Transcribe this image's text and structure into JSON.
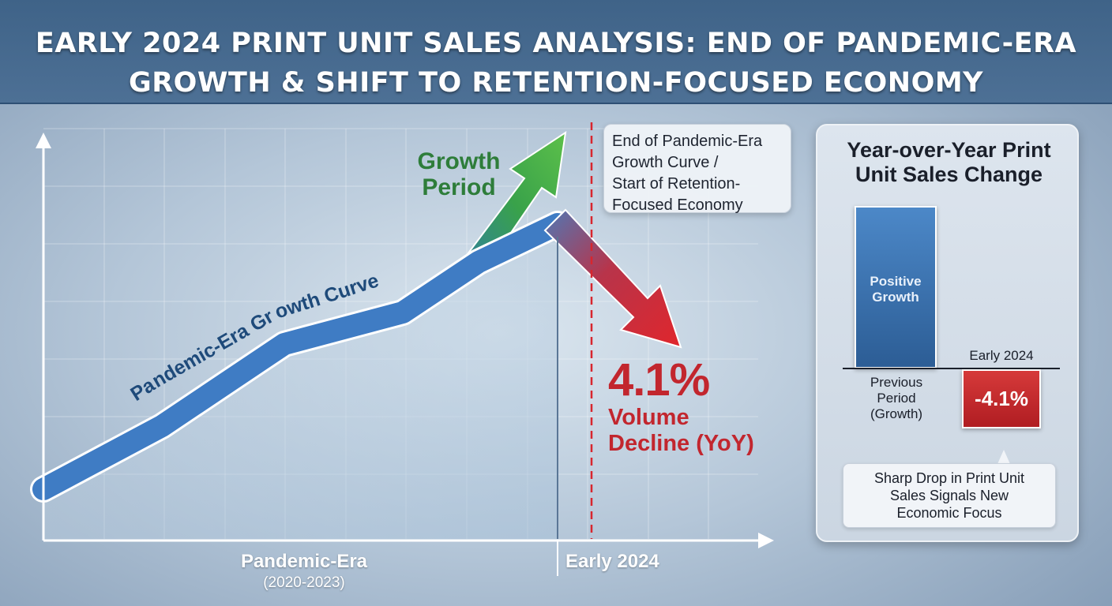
{
  "title": {
    "line1": "EARLY 2024 PRINT UNIT SALES ANALYSIS: END OF PANDEMIC-ERA",
    "line2": "GROWTH & SHIFT TO RETENTION-FOCUSED ECONOMY"
  },
  "colors": {
    "header": "#46698f",
    "curve": "#3f7cc4",
    "growth_arrow": "#3aa548",
    "decline_arrow": "#d8262e",
    "decline_text": "#c2262e",
    "growth_text": "#2e7d3a",
    "marker_line": "#d8262e"
  },
  "chart_data": [
    {
      "type": "line",
      "series": [
        {
          "name": "Pandemic-Era Growth Curve",
          "points": [
            {
              "x": "Pandemic-Era (2020-2023)",
              "y": 1.0
            },
            {
              "x": "",
              "y": 2.0
            },
            {
              "x": "",
              "y": 3.3
            },
            {
              "x": "",
              "y": 3.8
            },
            {
              "x": "",
              "y": 4.6
            },
            {
              "x": "Early 2024",
              "y": 5.2
            }
          ]
        }
      ],
      "x_labels": [
        {
          "label": "Pandemic-Era",
          "sub": "(2020-2023)"
        },
        {
          "label": "Early 2024",
          "sub": ""
        }
      ],
      "annotations": {
        "growth": {
          "line1": "Growth",
          "line2": "Period"
        },
        "marker_callout": {
          "line1": "End of Pandemic-Era",
          "line2": "Growth Curve /",
          "line3": "Start of Retention-",
          "line4": "Focused Economy"
        },
        "decline_value": "4.1%",
        "decline_label_line1": "Volume",
        "decline_label_line2": "Decline (YoY)"
      },
      "grid": true
    },
    {
      "type": "bar",
      "title": {
        "line1": "Year-over-Year Print",
        "line2": "Unit Sales Change"
      },
      "categories": [
        "Previous Period (Growth)",
        "Early 2024"
      ],
      "values": [
        null,
        -4.1
      ],
      "bars": {
        "positive_label_line1": "Positive",
        "positive_label_line2": "Growth",
        "negative_value_label": "-4.1%",
        "early_label": "Early 2024",
        "prev_label_line1": "Previous",
        "prev_label_line2": "Period",
        "prev_label_line3": "(Growth)"
      },
      "note": {
        "line1": "Sharp Drop in Print Unit",
        "line2": "Sales Signals New",
        "line3": "Economic Focus"
      }
    }
  ]
}
